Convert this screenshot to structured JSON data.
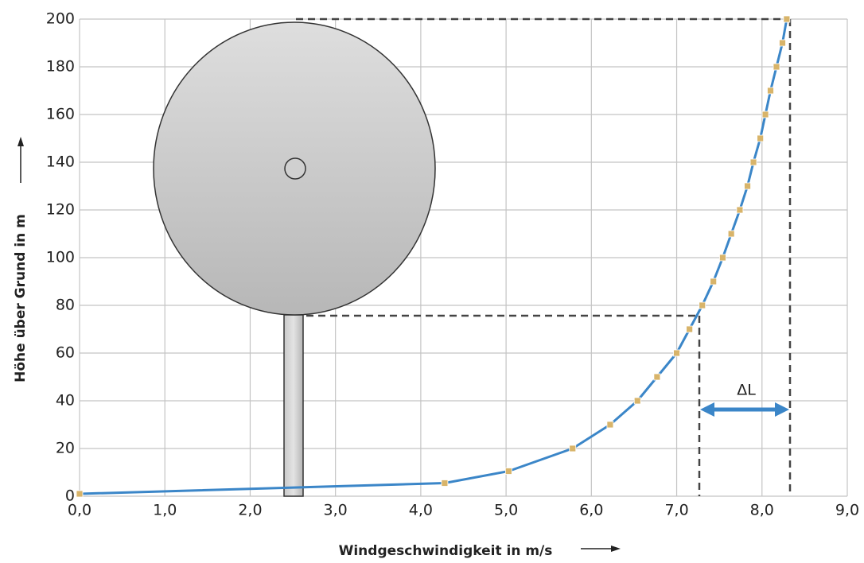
{
  "chart_data": {
    "type": "line",
    "x_label": "Windgeschwindigkeit in m/s",
    "y_label": "Höhe über Grund in m",
    "annotation": "ΔL",
    "series": [
      {
        "color": "#3b86c8",
        "marker_color": "#d8b46a",
        "x": [
          0,
          4.28,
          5.03,
          5.78,
          6.22,
          6.54,
          6.77,
          7.0,
          7.15,
          7.3,
          7.43,
          7.54,
          7.64,
          7.74,
          7.83,
          7.9,
          7.98,
          8.04,
          8.1,
          8.17,
          8.24,
          8.29
        ],
        "values": [
          1,
          5.5,
          10.5,
          20,
          30,
          40,
          50,
          60,
          70,
          80,
          90,
          100,
          110,
          120,
          130,
          140,
          150,
          160,
          170,
          180,
          190,
          200
        ]
      }
    ],
    "xlim": [
      0,
      9
    ],
    "ylim": [
      0,
      200
    ],
    "xticks": [
      {
        "value": 0,
        "label": "0,0"
      },
      {
        "value": 1,
        "label": "1,0"
      },
      {
        "value": 2,
        "label": "2,0"
      },
      {
        "value": 3,
        "label": "3,0"
      },
      {
        "value": 4,
        "label": "4,0"
      },
      {
        "value": 5,
        "label": "5,0"
      },
      {
        "value": 6,
        "label": "6,0"
      },
      {
        "value": 7,
        "label": "7,0"
      },
      {
        "value": 8,
        "label": "8,0"
      },
      {
        "value": 9,
        "label": "9,0"
      }
    ],
    "yticks": [
      0,
      20,
      40,
      60,
      80,
      100,
      120,
      140,
      160,
      180,
      200
    ],
    "grid": true
  }
}
